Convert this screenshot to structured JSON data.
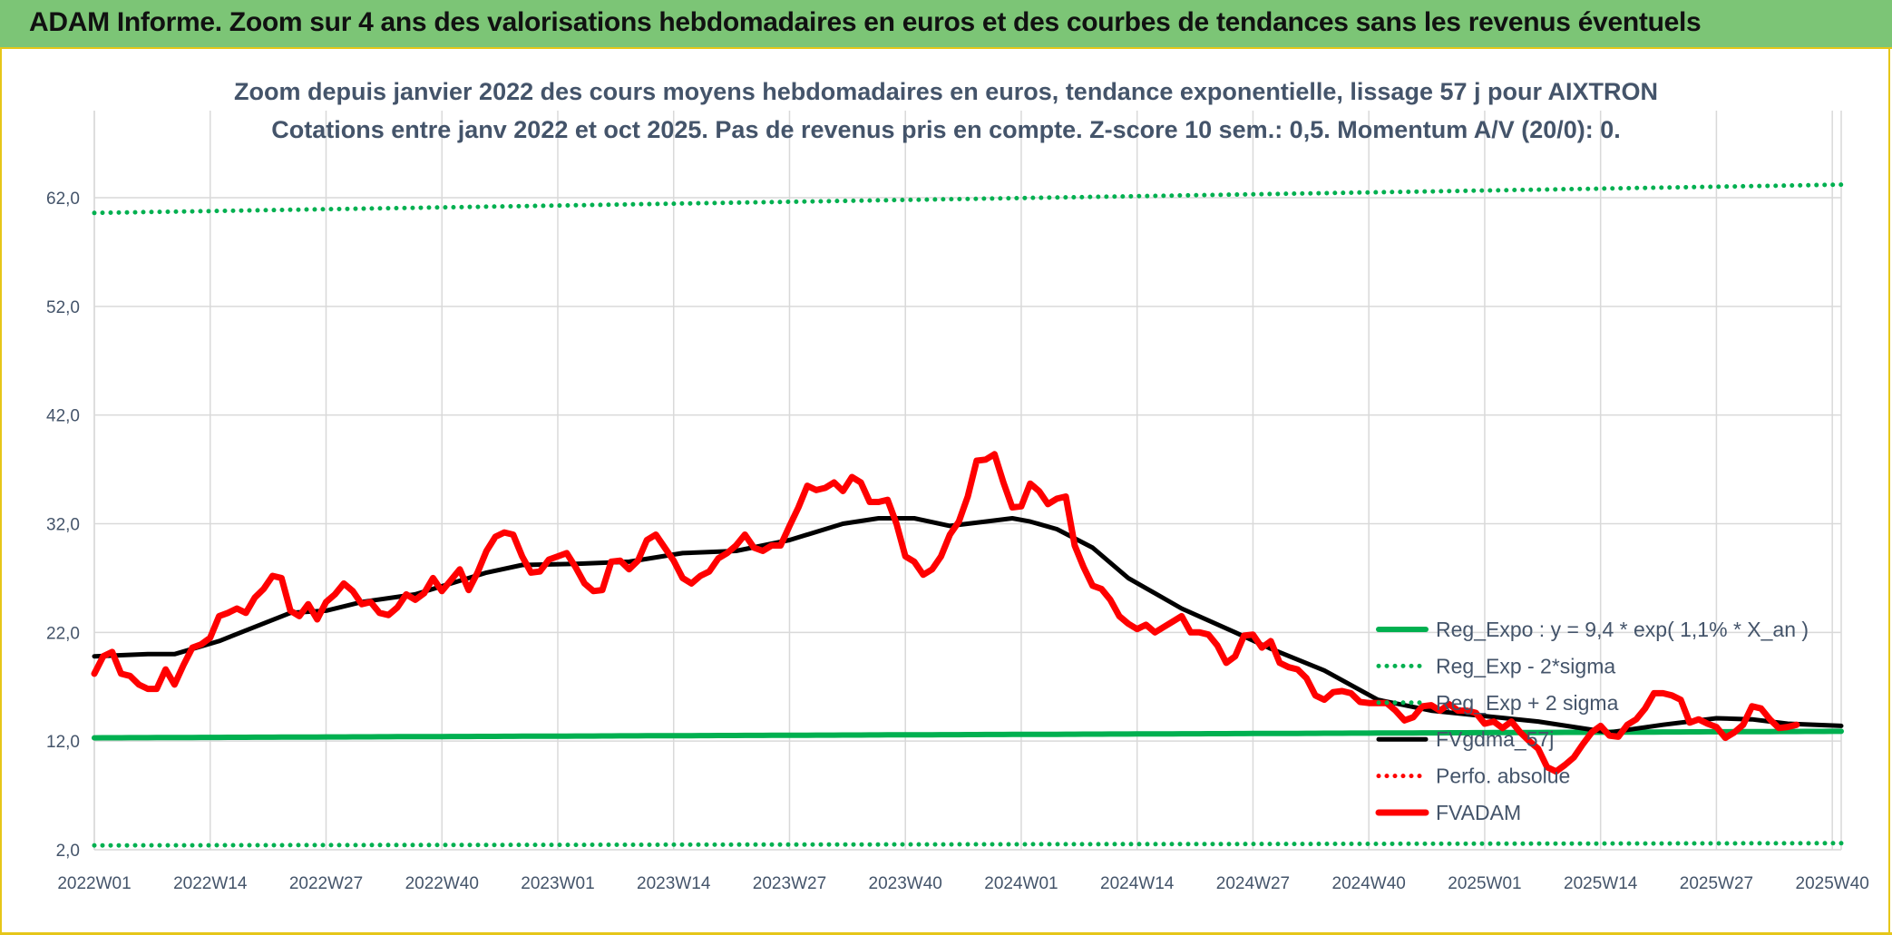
{
  "banner": {
    "title": "ADAM Informe. Zoom sur 4 ans des valorisations hebdomadaires en euros et des courbes de tendances sans les revenus éventuels"
  },
  "colors": {
    "banner_bg": "#7cc576",
    "frame": "#e6c619",
    "green": "#00b050",
    "red": "#ff0000",
    "black": "#000000",
    "text": "#44546a",
    "grid": "#d9d9d9"
  },
  "chart_data": {
    "type": "line",
    "title_line1": "Zoom depuis janvier 2022 des cours moyens hebdomadaires en euros, tendance exponentielle, lissage 57 j pour AIXTRON",
    "title_line2": "Cotations entre janv 2022 et oct 2025. Pas de revenus pris en compte. Z-score 10 sem.: 0,5. Momentum A/V (20/0): 0.",
    "xlabel": "",
    "ylabel": "",
    "ylim": [
      2,
      68
    ],
    "week_count": 197,
    "yticks": [
      {
        "value": 2,
        "label": "2,0"
      },
      {
        "value": 12,
        "label": "12,0"
      },
      {
        "value": 22,
        "label": "22,0"
      },
      {
        "value": 32,
        "label": "32,0"
      },
      {
        "value": 42,
        "label": "42,0"
      },
      {
        "value": 52,
        "label": "52,0"
      },
      {
        "value": 62,
        "label": "62,0"
      }
    ],
    "xticks": [
      {
        "index": 0,
        "label": "2022W01"
      },
      {
        "index": 13,
        "label": "2022W14"
      },
      {
        "index": 26,
        "label": "2022W27"
      },
      {
        "index": 39,
        "label": "2022W40"
      },
      {
        "index": 52,
        "label": "2023W01"
      },
      {
        "index": 65,
        "label": "2023W14"
      },
      {
        "index": 78,
        "label": "2023W27"
      },
      {
        "index": 91,
        "label": "2023W40"
      },
      {
        "index": 104,
        "label": "2024W01"
      },
      {
        "index": 117,
        "label": "2024W14"
      },
      {
        "index": 130,
        "label": "2024W27"
      },
      {
        "index": 143,
        "label": "2024W40"
      },
      {
        "index": 156,
        "label": "2025W01"
      },
      {
        "index": 169,
        "label": "2025W14"
      },
      {
        "index": 182,
        "label": "2025W27"
      },
      {
        "index": 195,
        "label": "2025W40"
      }
    ],
    "series": [
      {
        "name": "Reg_Expo : y = 9,4 * exp( 1,1% *  X_an )",
        "style": "solid-green",
        "start": 12.3,
        "end": 12.9
      },
      {
        "name": "Reg_Exp - 2*sigma",
        "style": "dotted-green",
        "start": 2.4,
        "end": 2.6
      },
      {
        "name": "Reg_Exp + 2 sigma",
        "style": "dotted-green",
        "start": 60.6,
        "end": 63.2
      },
      {
        "name": "FVgdma_57j",
        "style": "solid-black",
        "points": [
          [
            0,
            19.8
          ],
          [
            6,
            20.0
          ],
          [
            9,
            20.0
          ],
          [
            14,
            21.2
          ],
          [
            18,
            22.5
          ],
          [
            22,
            23.8
          ],
          [
            26,
            24.0
          ],
          [
            30,
            24.8
          ],
          [
            36,
            25.5
          ],
          [
            44,
            27.5
          ],
          [
            48,
            28.2
          ],
          [
            54,
            28.3
          ],
          [
            60,
            28.5
          ],
          [
            66,
            29.3
          ],
          [
            72,
            29.5
          ],
          [
            78,
            30.5
          ],
          [
            84,
            32.0
          ],
          [
            88,
            32.5
          ],
          [
            92,
            32.5
          ],
          [
            96,
            31.8
          ],
          [
            100,
            32.2
          ],
          [
            103,
            32.5
          ],
          [
            105,
            32.2
          ],
          [
            108,
            31.5
          ],
          [
            112,
            29.8
          ],
          [
            116,
            27.0
          ],
          [
            122,
            24.2
          ],
          [
            128,
            22.0
          ],
          [
            132,
            20.5
          ],
          [
            138,
            18.5
          ],
          [
            144,
            15.8
          ],
          [
            150,
            14.8
          ],
          [
            156,
            14.3
          ],
          [
            162,
            13.8
          ],
          [
            170,
            12.8
          ],
          [
            176,
            13.5
          ],
          [
            182,
            14.1
          ],
          [
            186,
            14.0
          ],
          [
            190,
            13.6
          ],
          [
            196,
            13.4
          ]
        ]
      },
      {
        "name": "Perfo. absolue",
        "style": "dotted-red",
        "points": []
      },
      {
        "name": "FVADAM",
        "style": "solid-red",
        "points": [
          [
            0,
            18.2
          ],
          [
            1,
            19.8
          ],
          [
            2,
            20.2
          ],
          [
            3,
            18.2
          ],
          [
            4,
            18.0
          ],
          [
            5,
            17.2
          ],
          [
            6,
            16.8
          ],
          [
            7,
            16.8
          ],
          [
            8,
            18.6
          ],
          [
            9,
            17.2
          ],
          [
            10,
            19.0
          ],
          [
            11,
            20.6
          ],
          [
            12,
            20.9
          ],
          [
            13,
            21.5
          ],
          [
            14,
            23.5
          ],
          [
            15,
            23.8
          ],
          [
            16,
            24.2
          ],
          [
            17,
            23.8
          ],
          [
            18,
            25.2
          ],
          [
            19,
            26.0
          ],
          [
            20,
            27.2
          ],
          [
            21,
            27.0
          ],
          [
            22,
            24.0
          ],
          [
            23,
            23.5
          ],
          [
            24,
            24.6
          ],
          [
            25,
            23.2
          ],
          [
            26,
            24.8
          ],
          [
            27,
            25.5
          ],
          [
            28,
            26.5
          ],
          [
            29,
            25.8
          ],
          [
            30,
            24.6
          ],
          [
            31,
            24.8
          ],
          [
            32,
            23.8
          ],
          [
            33,
            23.6
          ],
          [
            34,
            24.3
          ],
          [
            35,
            25.5
          ],
          [
            36,
            25.0
          ],
          [
            37,
            25.6
          ],
          [
            38,
            27.0
          ],
          [
            39,
            25.8
          ],
          [
            40,
            26.8
          ],
          [
            41,
            27.8
          ],
          [
            42,
            25.9
          ],
          [
            43,
            27.5
          ],
          [
            44,
            29.5
          ],
          [
            45,
            30.8
          ],
          [
            46,
            31.2
          ],
          [
            47,
            31.0
          ],
          [
            48,
            29.0
          ],
          [
            49,
            27.5
          ],
          [
            50,
            27.6
          ],
          [
            51,
            28.7
          ],
          [
            52,
            29.0
          ],
          [
            53,
            29.3
          ],
          [
            54,
            28.0
          ],
          [
            55,
            26.5
          ],
          [
            56,
            25.8
          ],
          [
            57,
            25.9
          ],
          [
            58,
            28.5
          ],
          [
            59,
            28.6
          ],
          [
            60,
            27.8
          ],
          [
            61,
            28.6
          ],
          [
            62,
            30.5
          ],
          [
            63,
            31.0
          ],
          [
            64,
            29.8
          ],
          [
            65,
            28.6
          ],
          [
            66,
            27.0
          ],
          [
            67,
            26.5
          ],
          [
            68,
            27.2
          ],
          [
            69,
            27.6
          ],
          [
            70,
            28.8
          ],
          [
            71,
            29.3
          ],
          [
            72,
            30.0
          ],
          [
            73,
            31.0
          ],
          [
            74,
            29.8
          ],
          [
            75,
            29.5
          ],
          [
            76,
            30.0
          ],
          [
            77,
            30.0
          ],
          [
            78,
            31.8
          ],
          [
            79,
            33.5
          ],
          [
            80,
            35.5
          ],
          [
            81,
            35.1
          ],
          [
            82,
            35.3
          ],
          [
            83,
            35.8
          ],
          [
            84,
            35.0
          ],
          [
            85,
            36.3
          ],
          [
            86,
            35.8
          ],
          [
            87,
            34.0
          ],
          [
            88,
            34.0
          ],
          [
            89,
            34.2
          ],
          [
            90,
            32.0
          ],
          [
            91,
            29.0
          ],
          [
            92,
            28.5
          ],
          [
            93,
            27.3
          ],
          [
            94,
            27.8
          ],
          [
            95,
            29.0
          ],
          [
            96,
            31.0
          ],
          [
            97,
            32.2
          ],
          [
            98,
            34.5
          ],
          [
            99,
            37.8
          ],
          [
            100,
            37.9
          ],
          [
            101,
            38.4
          ],
          [
            102,
            35.8
          ],
          [
            103,
            33.5
          ],
          [
            104,
            33.6
          ],
          [
            105,
            35.7
          ],
          [
            106,
            35.0
          ],
          [
            107,
            33.8
          ],
          [
            108,
            34.3
          ],
          [
            109,
            34.5
          ],
          [
            110,
            30.0
          ],
          [
            111,
            28.0
          ],
          [
            112,
            26.3
          ],
          [
            113,
            26.0
          ],
          [
            114,
            25.0
          ],
          [
            115,
            23.5
          ],
          [
            116,
            22.8
          ],
          [
            117,
            22.3
          ],
          [
            118,
            22.7
          ],
          [
            119,
            22.0
          ],
          [
            120,
            22.5
          ],
          [
            121,
            23.0
          ],
          [
            122,
            23.5
          ],
          [
            123,
            22.0
          ],
          [
            124,
            22.0
          ],
          [
            125,
            21.8
          ],
          [
            126,
            20.8
          ],
          [
            127,
            19.2
          ],
          [
            128,
            19.8
          ],
          [
            129,
            21.7
          ],
          [
            130,
            21.8
          ],
          [
            131,
            20.6
          ],
          [
            132,
            21.2
          ],
          [
            133,
            19.2
          ],
          [
            134,
            18.8
          ],
          [
            135,
            18.6
          ],
          [
            136,
            17.8
          ],
          [
            137,
            16.2
          ],
          [
            138,
            15.8
          ],
          [
            139,
            16.5
          ],
          [
            140,
            16.6
          ],
          [
            141,
            16.4
          ],
          [
            142,
            15.6
          ],
          [
            143,
            15.5
          ],
          [
            144,
            15.5
          ],
          [
            145,
            15.5
          ],
          [
            146,
            14.8
          ],
          [
            147,
            13.9
          ],
          [
            148,
            14.2
          ],
          [
            149,
            15.2
          ],
          [
            150,
            15.3
          ],
          [
            151,
            14.8
          ],
          [
            152,
            15.4
          ],
          [
            153,
            14.8
          ],
          [
            154,
            14.8
          ],
          [
            155,
            14.6
          ],
          [
            156,
            13.6
          ],
          [
            157,
            13.8
          ],
          [
            158,
            13.2
          ],
          [
            159,
            13.8
          ],
          [
            160,
            12.8
          ],
          [
            161,
            12.0
          ],
          [
            162,
            11.3
          ],
          [
            163,
            9.6
          ],
          [
            164,
            9.2
          ],
          [
            165,
            9.8
          ],
          [
            166,
            10.5
          ],
          [
            167,
            11.7
          ],
          [
            168,
            12.8
          ],
          [
            169,
            13.4
          ],
          [
            170,
            12.5
          ],
          [
            171,
            12.4
          ],
          [
            172,
            13.5
          ],
          [
            173,
            14.0
          ],
          [
            174,
            15.0
          ],
          [
            175,
            16.4
          ],
          [
            176,
            16.4
          ],
          [
            177,
            16.2
          ],
          [
            178,
            15.8
          ],
          [
            179,
            13.7
          ],
          [
            180,
            14.0
          ],
          [
            181,
            13.6
          ],
          [
            182,
            13.3
          ],
          [
            183,
            12.3
          ],
          [
            184,
            12.8
          ],
          [
            185,
            13.5
          ],
          [
            186,
            15.2
          ],
          [
            187,
            15.0
          ],
          [
            188,
            14.0
          ],
          [
            189,
            13.2
          ],
          [
            190,
            13.3
          ],
          [
            191,
            13.5
          ]
        ]
      }
    ]
  }
}
